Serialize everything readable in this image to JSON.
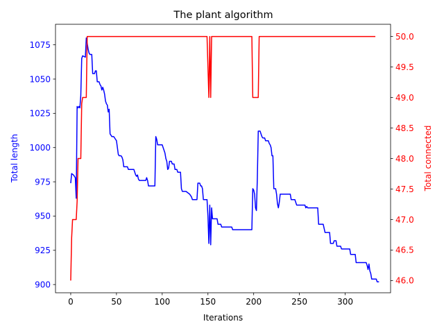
{
  "chart_data": {
    "type": "line",
    "title": "The plant algorithm",
    "xlabel": "Iterations",
    "ylabel_left": "Total length",
    "ylabel_right": "Total connected",
    "xlim": [
      -16.65,
      349.65
    ],
    "ylim_left": [
      894.0,
      1090.0
    ],
    "ylim_right": [
      45.8,
      50.2
    ],
    "x_ticks": [
      0,
      50,
      100,
      150,
      200,
      250,
      300
    ],
    "y_left_ticks": [
      900,
      925,
      950,
      975,
      1000,
      1025,
      1050,
      1075
    ],
    "y_right_ticks": [
      46.0,
      46.5,
      47.0,
      47.5,
      48.0,
      48.5,
      49.0,
      49.5,
      50.0
    ],
    "y_right_tick_labels": [
      "46.0",
      "46.5",
      "47.0",
      "47.5",
      "48.0",
      "48.5",
      "49.0",
      "49.5",
      "50.0"
    ],
    "grid": false,
    "colors": {
      "left": "#0000ff",
      "right": "#ff0000"
    },
    "series": [
      {
        "axis": "left",
        "color": "#0000ff",
        "points": [
          [
            0,
            974
          ],
          [
            1,
            981
          ],
          [
            3,
            980
          ],
          [
            5,
            978
          ],
          [
            6,
            963
          ],
          [
            7,
            1030
          ],
          [
            8,
            1029
          ],
          [
            9,
            1030
          ],
          [
            10,
            1029
          ],
          [
            11,
            1038
          ],
          [
            12,
            1065
          ],
          [
            13,
            1067
          ],
          [
            16,
            1066
          ],
          [
            17,
            1080
          ],
          [
            18,
            1076
          ],
          [
            19,
            1072
          ],
          [
            20,
            1069
          ],
          [
            21,
            1068
          ],
          [
            23,
            1068
          ],
          [
            24,
            1054
          ],
          [
            26,
            1054
          ],
          [
            27,
            1056
          ],
          [
            28,
            1056
          ],
          [
            29,
            1048
          ],
          [
            31,
            1048
          ],
          [
            32,
            1046
          ],
          [
            33,
            1045
          ],
          [
            34,
            1042
          ],
          [
            35,
            1044
          ],
          [
            36,
            1042
          ],
          [
            37,
            1039
          ],
          [
            38,
            1034
          ],
          [
            39,
            1032
          ],
          [
            40,
            1031
          ],
          [
            41,
            1026
          ],
          [
            42,
            1028
          ],
          [
            43,
            1010
          ],
          [
            44,
            1009
          ],
          [
            45,
            1008
          ],
          [
            47,
            1008
          ],
          [
            48,
            1007
          ],
          [
            49,
            1006
          ],
          [
            50,
            1005
          ],
          [
            51,
            1000
          ],
          [
            52,
            995
          ],
          [
            53,
            994
          ],
          [
            55,
            994
          ],
          [
            56,
            993
          ],
          [
            57,
            991
          ],
          [
            58,
            986
          ],
          [
            61,
            986
          ],
          [
            62,
            986
          ],
          [
            63,
            984
          ],
          [
            65,
            984
          ],
          [
            66,
            984
          ],
          [
            67,
            984
          ],
          [
            69,
            984
          ],
          [
            70,
            982
          ],
          [
            71,
            980
          ],
          [
            72,
            979
          ],
          [
            73,
            980
          ],
          [
            74,
            977
          ],
          [
            75,
            976
          ],
          [
            80,
            976
          ],
          [
            82,
            976
          ],
          [
            83,
            978
          ],
          [
            84,
            976
          ],
          [
            85,
            972
          ],
          [
            91,
            972
          ],
          [
            92,
            972
          ],
          [
            93,
            1008
          ],
          [
            94,
            1006
          ],
          [
            95,
            1002
          ],
          [
            100,
            1002
          ],
          [
            101,
            1000
          ],
          [
            102,
            998
          ],
          [
            103,
            996
          ],
          [
            104,
            992
          ],
          [
            105,
            990
          ],
          [
            106,
            984
          ],
          [
            107,
            985
          ],
          [
            108,
            990
          ],
          [
            110,
            990
          ],
          [
            111,
            988
          ],
          [
            113,
            988
          ],
          [
            114,
            984
          ],
          [
            116,
            984
          ],
          [
            117,
            982
          ],
          [
            120,
            982
          ],
          [
            121,
            970
          ],
          [
            122,
            968
          ],
          [
            126,
            968
          ],
          [
            128,
            967
          ],
          [
            130,
            966
          ],
          [
            132,
            964
          ],
          [
            133,
            962
          ],
          [
            138,
            962
          ],
          [
            139,
            974
          ],
          [
            141,
            974
          ],
          [
            142,
            972
          ],
          [
            143,
            972
          ],
          [
            144,
            970
          ],
          [
            145,
            962
          ],
          [
            149,
            962
          ],
          [
            150,
            950
          ],
          [
            151,
            930
          ],
          [
            152,
            958
          ],
          [
            153,
            929
          ],
          [
            154,
            956
          ],
          [
            155,
            948
          ],
          [
            160,
            948
          ],
          [
            161,
            944
          ],
          [
            164,
            944
          ],
          [
            165,
            942
          ],
          [
            170,
            942
          ],
          [
            175,
            942
          ],
          [
            176,
            942
          ],
          [
            177,
            940
          ],
          [
            180,
            940
          ],
          [
            190,
            940
          ],
          [
            198,
            940
          ],
          [
            199,
            970
          ],
          [
            200,
            969
          ],
          [
            201,
            966
          ],
          [
            202,
            956
          ],
          [
            203,
            954
          ],
          [
            204,
            978
          ],
          [
            205,
            1012
          ],
          [
            207,
            1012
          ],
          [
            208,
            1010
          ],
          [
            209,
            1008
          ],
          [
            210,
            1007
          ],
          [
            212,
            1007
          ],
          [
            213,
            1005
          ],
          [
            216,
            1005
          ],
          [
            217,
            1003
          ],
          [
            218,
            1002
          ],
          [
            219,
            1000
          ],
          [
            220,
            994
          ],
          [
            221,
            994
          ],
          [
            222,
            970
          ],
          [
            224,
            970
          ],
          [
            225,
            966
          ],
          [
            226,
            959
          ],
          [
            227,
            956
          ],
          [
            228,
            960
          ],
          [
            229,
            966
          ],
          [
            240,
            966
          ],
          [
            241,
            962
          ],
          [
            245,
            962
          ],
          [
            247,
            958
          ],
          [
            255,
            958
          ],
          [
            256,
            958
          ],
          [
            257,
            956
          ],
          [
            258,
            957
          ],
          [
            259,
            956
          ],
          [
            270,
            956
          ],
          [
            271,
            944
          ],
          [
            276,
            944
          ],
          [
            277,
            941
          ],
          [
            278,
            938
          ],
          [
            283,
            938
          ],
          [
            284,
            930
          ],
          [
            287,
            930
          ],
          [
            288,
            932
          ],
          [
            290,
            932
          ],
          [
            291,
            928
          ],
          [
            295,
            928
          ],
          [
            296,
            926
          ],
          [
            305,
            926
          ],
          [
            306,
            922
          ],
          [
            311,
            922
          ],
          [
            312,
            916
          ],
          [
            323,
            916
          ],
          [
            324,
            914
          ],
          [
            325,
            911
          ],
          [
            326,
            915
          ],
          [
            327,
            910
          ],
          [
            328,
            908
          ],
          [
            329,
            904
          ],
          [
            334,
            904
          ],
          [
            335,
            902
          ],
          [
            337,
            902
          ]
        ]
      },
      {
        "axis": "right",
        "color": "#ff0000",
        "points": [
          [
            0,
            46.0
          ],
          [
            1,
            46.7
          ],
          [
            2,
            47.0
          ],
          [
            6,
            47.0
          ],
          [
            7,
            47.3
          ],
          [
            8,
            48.0
          ],
          [
            11,
            48.0
          ],
          [
            12,
            48.9
          ],
          [
            13,
            49.0
          ],
          [
            17,
            49.0
          ],
          [
            18,
            50.0
          ],
          [
            149,
            50.0
          ],
          [
            151,
            49.0
          ],
          [
            152,
            50.0
          ],
          [
            153,
            49.0
          ],
          [
            154,
            50.0
          ],
          [
            198,
            50.0
          ],
          [
            199,
            49.0
          ],
          [
            205,
            49.0
          ],
          [
            206,
            50.0
          ],
          [
            333,
            50.0
          ]
        ]
      }
    ]
  }
}
